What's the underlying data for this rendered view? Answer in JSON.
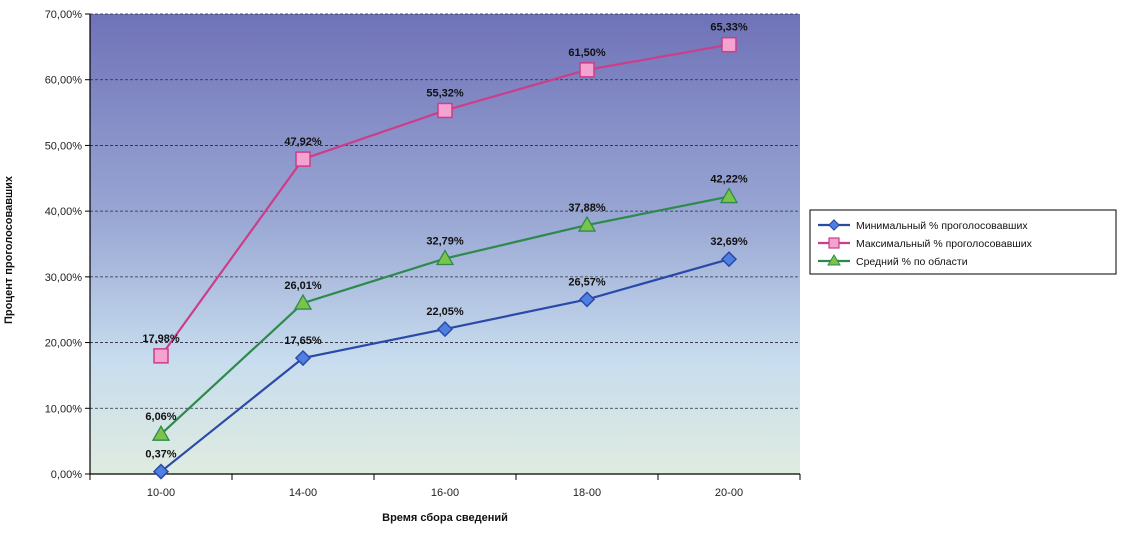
{
  "chart_data": {
    "type": "line",
    "title": "",
    "xlabel": "Время сбора сведений",
    "ylabel": "Процент проголосовавших",
    "categories": [
      "10-00",
      "14-00",
      "16-00",
      "18-00",
      "20-00"
    ],
    "ylim": [
      0,
      70
    ],
    "yticks": [
      0,
      10,
      20,
      30,
      40,
      50,
      60,
      70
    ],
    "ytick_labels": [
      "0,00%",
      "10,00%",
      "20,00%",
      "30,00%",
      "40,00%",
      "50,00%",
      "60,00%",
      "70,00%"
    ],
    "grid": "horizontal dashed",
    "legend_position": "right",
    "series": [
      {
        "name": "Минимальный % проголосовавших",
        "values": [
          0.37,
          17.65,
          22.05,
          26.57,
          32.69
        ],
        "labels": [
          "0,37%",
          "17,65%",
          "22,05%",
          "26,57%",
          "32,69%"
        ],
        "color": "#2b4aa8",
        "marker": "diamond"
      },
      {
        "name": "Максимальный % проголосовавших",
        "values": [
          17.98,
          47.92,
          55.32,
          61.5,
          65.33
        ],
        "labels": [
          "17,98%",
          "47,92%",
          "55,32%",
          "61,50%",
          "65,33%"
        ],
        "color": "#cc3d8a",
        "marker": "square"
      },
      {
        "name": "Средний % по области",
        "values": [
          6.06,
          26.01,
          32.79,
          37.88,
          42.22
        ],
        "labels": [
          "6,06%",
          "26,01%",
          "32,79%",
          "37,88%",
          "42,22%"
        ],
        "color": "#2e8a4c",
        "marker": "triangle"
      }
    ]
  }
}
